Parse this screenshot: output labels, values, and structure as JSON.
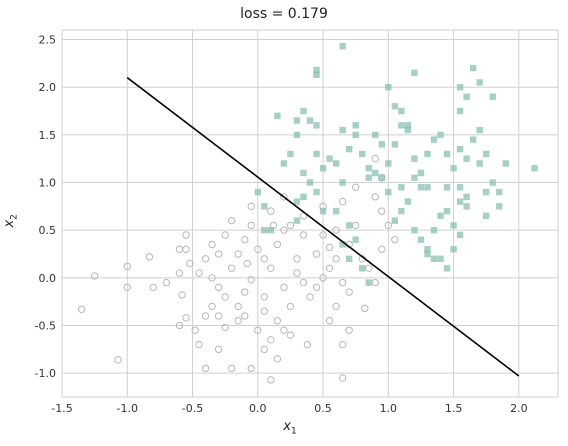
{
  "chart_data": {
    "type": "scatter",
    "title": "loss = 0.179",
    "xlabel_base": "x",
    "xlabel_sub": "1",
    "ylabel_base": "x",
    "ylabel_sub": "2",
    "xlim": [
      -1.5,
      2.3
    ],
    "ylim": [
      -1.25,
      2.6
    ],
    "xticks": [
      -1.5,
      -1.0,
      -0.5,
      0.0,
      0.5,
      1.0,
      1.5,
      2.0
    ],
    "yticks": [
      -1.0,
      -0.5,
      0.0,
      0.5,
      1.0,
      1.5,
      2.0,
      2.5
    ],
    "grid": true,
    "colors": {
      "class0": "#b8b8b8",
      "class1": "#88bfb3",
      "boundary": "#000000",
      "grid": "#d0d0d0"
    },
    "boundary": {
      "x": [
        -1.0,
        2.0
      ],
      "y": [
        2.1,
        -1.03
      ]
    },
    "series": [
      {
        "marker": "circle-open",
        "points": [
          [
            -1.35,
            -0.33
          ],
          [
            -1.25,
            0.02
          ],
          [
            -1.0,
            0.12
          ],
          [
            -1.0,
            -0.1
          ],
          [
            -0.8,
            -0.1
          ],
          [
            -0.83,
            0.22
          ],
          [
            -1.07,
            -0.86
          ],
          [
            -0.6,
            0.3
          ],
          [
            -0.55,
            0.45
          ],
          [
            -0.55,
            0.3
          ],
          [
            -0.52,
            0.15
          ],
          [
            -0.58,
            -0.18
          ],
          [
            -0.55,
            -0.42
          ],
          [
            -0.6,
            -0.5
          ],
          [
            -0.45,
            0.05
          ],
          [
            -0.4,
            0.2
          ],
          [
            -0.35,
            0.35
          ],
          [
            -0.3,
            0.25
          ],
          [
            -0.25,
            0.45
          ],
          [
            -0.2,
            0.1
          ],
          [
            -0.15,
            0.25
          ],
          [
            -0.1,
            0.4
          ],
          [
            -0.05,
            0.55
          ],
          [
            -0.05,
            0.75
          ],
          [
            -0.35,
            0.0
          ],
          [
            -0.3,
            -0.1
          ],
          [
            -0.25,
            -0.2
          ],
          [
            -0.35,
            -0.3
          ],
          [
            -0.4,
            -0.4
          ],
          [
            -0.3,
            -0.4
          ],
          [
            -0.45,
            -0.7
          ],
          [
            -0.3,
            -0.75
          ],
          [
            -0.4,
            -0.95
          ],
          [
            -0.2,
            -0.95
          ],
          [
            -0.05,
            -0.02
          ],
          [
            -0.1,
            -0.15
          ],
          [
            -0.15,
            -0.3
          ],
          [
            -0.1,
            -0.4
          ],
          [
            -0.15,
            -0.45
          ],
          [
            0.05,
            -0.2
          ],
          [
            0.05,
            -0.35
          ],
          [
            0.0,
            0.3
          ],
          [
            0.05,
            0.2
          ],
          [
            0.1,
            0.1
          ],
          [
            0.15,
            0.35
          ],
          [
            0.2,
            0.5
          ],
          [
            0.25,
            0.55
          ],
          [
            0.3,
            0.2
          ],
          [
            0.3,
            0.05
          ],
          [
            0.35,
            -0.05
          ],
          [
            0.2,
            -0.1
          ],
          [
            0.25,
            -0.3
          ],
          [
            0.15,
            -0.45
          ],
          [
            0.2,
            -0.55
          ],
          [
            0.25,
            -0.6
          ],
          [
            0.1,
            -0.65
          ],
          [
            0.05,
            -0.75
          ],
          [
            0.15,
            -0.85
          ],
          [
            0.1,
            -1.07
          ],
          [
            0.4,
            -0.2
          ],
          [
            0.45,
            -0.1
          ],
          [
            0.5,
            0.0
          ],
          [
            0.55,
            0.1
          ],
          [
            0.6,
            0.2
          ],
          [
            0.45,
            0.25
          ],
          [
            0.5,
            0.45
          ],
          [
            0.6,
            0.5
          ],
          [
            0.7,
            0.35
          ],
          [
            0.75,
            0.55
          ],
          [
            0.8,
            0.2
          ],
          [
            0.85,
            0.1
          ],
          [
            0.65,
            -0.05
          ],
          [
            0.7,
            -0.15
          ],
          [
            0.6,
            -0.3
          ],
          [
            0.55,
            -0.45
          ],
          [
            0.7,
            -0.55
          ],
          [
            0.65,
            -0.7
          ],
          [
            0.65,
            -1.05
          ],
          [
            0.9,
            -0.05
          ],
          [
            0.95,
            0.3
          ],
          [
            1.0,
            0.55
          ],
          [
            1.05,
            0.4
          ],
          [
            0.35,
            0.65
          ],
          [
            0.5,
            0.75
          ],
          [
            0.65,
            0.8
          ],
          [
            0.75,
            0.95
          ],
          [
            0.9,
            0.85
          ],
          [
            0.95,
            1.05
          ],
          [
            0.9,
            1.25
          ],
          [
            0.95,
            0.7
          ],
          [
            0.2,
            0.85
          ],
          [
            0.1,
            0.7
          ],
          [
            -0.08,
            0.15
          ],
          [
            -0.6,
            0.05
          ],
          [
            -0.7,
            -0.05
          ],
          [
            -0.25,
            -0.52
          ],
          [
            -0.48,
            -0.55
          ],
          [
            0.12,
            0.55
          ],
          [
            0.35,
            0.45
          ],
          [
            0.38,
            -0.7
          ],
          [
            0.82,
            -0.32
          ],
          [
            0.55,
            0.32
          ],
          [
            0.0,
            -0.55
          ],
          [
            -0.05,
            -0.95
          ],
          [
            -0.2,
            0.6
          ]
        ]
      },
      {
        "marker": "square",
        "points": [
          [
            0.05,
            0.5
          ],
          [
            0.1,
            0.5
          ],
          [
            0.05,
            0.75
          ],
          [
            0.0,
            0.9
          ],
          [
            0.2,
            1.2
          ],
          [
            0.25,
            1.3
          ],
          [
            0.3,
            1.5
          ],
          [
            0.35,
            1.1
          ],
          [
            0.4,
            1.0
          ],
          [
            0.45,
            0.9
          ],
          [
            0.3,
            0.8
          ],
          [
            0.35,
            0.85
          ],
          [
            0.5,
            0.7
          ],
          [
            0.45,
            1.3
          ],
          [
            0.45,
            1.6
          ],
          [
            0.6,
            1.2
          ],
          [
            0.65,
            1.0
          ],
          [
            0.6,
            0.7
          ],
          [
            0.7,
            1.35
          ],
          [
            0.75,
            1.5
          ],
          [
            0.75,
            1.6
          ],
          [
            0.65,
            1.55
          ],
          [
            0.65,
            2.43
          ],
          [
            0.45,
            2.18
          ],
          [
            0.45,
            2.13
          ],
          [
            0.35,
            1.75
          ],
          [
            0.4,
            1.65
          ],
          [
            0.3,
            1.65
          ],
          [
            0.15,
            1.7
          ],
          [
            0.5,
            1.15
          ],
          [
            0.55,
            1.25
          ],
          [
            0.8,
            1.3
          ],
          [
            0.85,
            1.15
          ],
          [
            0.9,
            1.1
          ],
          [
            0.95,
            1.05
          ],
          [
            1.0,
            1.2
          ],
          [
            1.05,
            1.4
          ],
          [
            1.1,
            1.6
          ],
          [
            1.15,
            1.55
          ],
          [
            1.2,
            1.25
          ],
          [
            1.25,
            1.1
          ],
          [
            1.3,
            1.3
          ],
          [
            1.35,
            1.45
          ],
          [
            1.4,
            1.5
          ],
          [
            1.45,
            1.3
          ],
          [
            1.5,
            1.15
          ],
          [
            1.55,
            1.35
          ],
          [
            1.6,
            1.25
          ],
          [
            1.65,
            1.45
          ],
          [
            1.7,
            1.55
          ],
          [
            1.75,
            1.3
          ],
          [
            1.8,
            1.0
          ],
          [
            1.75,
            0.9
          ],
          [
            1.7,
            1.2
          ],
          [
            1.55,
            1.75
          ],
          [
            1.55,
            2.0
          ],
          [
            1.6,
            1.9
          ],
          [
            1.7,
            2.05
          ],
          [
            1.65,
            2.2
          ],
          [
            1.8,
            1.9
          ],
          [
            1.2,
            2.15
          ],
          [
            1.0,
            2.0
          ],
          [
            1.05,
            1.8
          ],
          [
            1.1,
            1.75
          ],
          [
            1.15,
            1.6
          ],
          [
            0.9,
            1.5
          ],
          [
            0.95,
            1.4
          ],
          [
            1.0,
            0.9
          ],
          [
            1.05,
            0.6
          ],
          [
            1.1,
            0.7
          ],
          [
            1.15,
            0.8
          ],
          [
            1.2,
            0.5
          ],
          [
            1.25,
            0.4
          ],
          [
            1.3,
            0.3
          ],
          [
            1.35,
            0.5
          ],
          [
            1.4,
            0.65
          ],
          [
            1.45,
            0.7
          ],
          [
            1.5,
            0.55
          ],
          [
            1.55,
            0.8
          ],
          [
            1.6,
            0.85
          ],
          [
            1.4,
            0.2
          ],
          [
            1.35,
            0.2
          ],
          [
            1.5,
            0.3
          ],
          [
            1.55,
            0.45
          ],
          [
            1.45,
            0.1
          ],
          [
            1.3,
            0.25
          ],
          [
            1.3,
            0.95
          ],
          [
            1.25,
            0.95
          ],
          [
            1.45,
            0.95
          ],
          [
            1.55,
            0.95
          ],
          [
            1.6,
            0.75
          ],
          [
            1.75,
            0.65
          ],
          [
            1.85,
            0.9
          ],
          [
            1.9,
            1.2
          ],
          [
            2.12,
            1.15
          ],
          [
            1.85,
            0.75
          ],
          [
            0.85,
            1.05
          ],
          [
            0.7,
            0.55
          ],
          [
            0.75,
            0.4
          ],
          [
            0.65,
            0.35
          ],
          [
            0.7,
            0.2
          ],
          [
            0.8,
            0.1
          ],
          [
            0.85,
            -0.05
          ],
          [
            1.1,
            0.95
          ],
          [
            1.2,
            1.05
          ],
          [
            0.3,
            0.6
          ]
        ]
      }
    ]
  }
}
